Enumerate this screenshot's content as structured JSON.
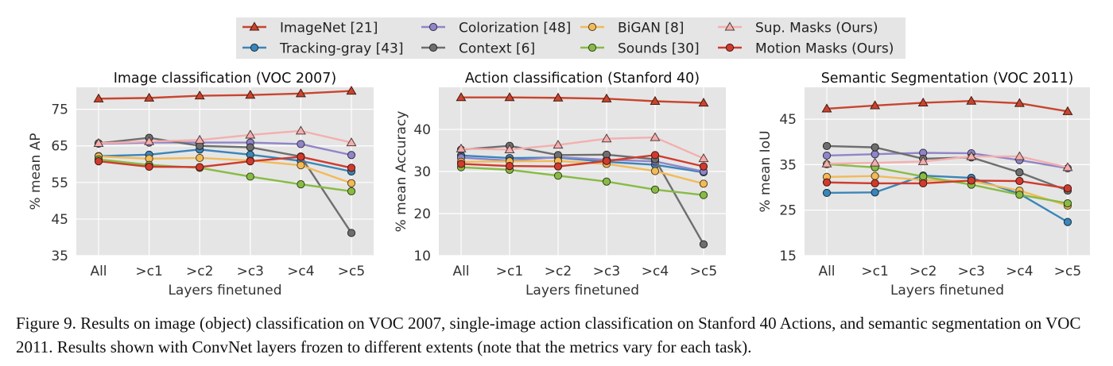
{
  "legend": {
    "placement": "top-center",
    "entries": [
      {
        "name": "ImageNet [21]",
        "color": "#C8452E",
        "marker": "triangle"
      },
      {
        "name": "Tracking-gray [43]",
        "color": "#3A85B9",
        "marker": "circle"
      },
      {
        "name": "Colorization [48]",
        "color": "#8F85C8",
        "marker": "circle"
      },
      {
        "name": "Context [6]",
        "color": "#6E6E6E",
        "marker": "circle"
      },
      {
        "name": "BiGAN [8]",
        "color": "#F2BA58",
        "marker": "circle"
      },
      {
        "name": "Sounds [30]",
        "color": "#88BB45",
        "marker": "circle"
      },
      {
        "name": "Sup. Masks (Ours)",
        "color": "#F4AFAF",
        "marker": "triangle"
      },
      {
        "name": "Motion Masks (Ours)",
        "color": "#CF3B2E",
        "marker": "circle"
      }
    ]
  },
  "chart_data": [
    {
      "type": "line",
      "title": "Image classification (VOC 2007)",
      "xlabel": "Layers finetuned",
      "ylabel": "% mean AP",
      "categories": [
        "All",
        ">c1",
        ">c2",
        ">c3",
        ">c4",
        ">c5"
      ],
      "ylim": [
        35,
        81
      ],
      "yticks": [
        35,
        45,
        55,
        65,
        75
      ],
      "grid": true,
      "series": [
        {
          "name": "ImageNet [21]",
          "values": [
            77.9,
            78.1,
            78.7,
            78.9,
            79.3,
            80.0
          ]
        },
        {
          "name": "Tracking-gray [43]",
          "values": [
            62.2,
            62.6,
            64.0,
            62.6,
            60.9,
            58.0
          ]
        },
        {
          "name": "Colorization [48]",
          "values": [
            65.6,
            65.9,
            65.9,
            65.9,
            65.5,
            62.5
          ]
        },
        {
          "name": "Context [6]",
          "values": [
            65.7,
            67.2,
            65.0,
            64.6,
            62.1,
            41.2
          ]
        },
        {
          "name": "BiGAN [8]",
          "values": [
            62.1,
            61.5,
            61.7,
            61.0,
            59.7,
            54.8
          ]
        },
        {
          "name": "Sounds [30]",
          "values": [
            61.3,
            59.8,
            59.0,
            56.6,
            54.5,
            52.6
          ]
        },
        {
          "name": "Sup. Masks (Ours)",
          "values": [
            65.7,
            66.2,
            66.6,
            68.0,
            69.1,
            65.9
          ]
        },
        {
          "name": "Motion Masks (Ours)",
          "values": [
            60.8,
            59.3,
            59.2,
            60.8,
            62.0,
            59.0
          ]
        }
      ]
    },
    {
      "type": "line",
      "title": "Action classification (Stanford 40)",
      "xlabel": "Layers finetuned",
      "ylabel": "% mean Accuracy",
      "categories": [
        "All",
        ">c1",
        ">c2",
        ">c3",
        ">c4",
        ">c5"
      ],
      "ylim": [
        10,
        50
      ],
      "yticks": [
        10,
        20,
        30,
        40
      ],
      "grid": true,
      "series": [
        {
          "name": "ImageNet [21]",
          "values": [
            47.6,
            47.6,
            47.5,
            47.3,
            46.7,
            46.3
          ]
        },
        {
          "name": "Tracking-gray [43]",
          "values": [
            33.8,
            33.2,
            33.3,
            32.3,
            31.6,
            29.8
          ]
        },
        {
          "name": "Colorization [48]",
          "values": [
            33.3,
            32.6,
            33.4,
            32.8,
            32.4,
            30.0
          ]
        },
        {
          "name": "Context [6]",
          "values": [
            35.2,
            36.1,
            33.9,
            34.0,
            32.9,
            12.7
          ]
        },
        {
          "name": "BiGAN [8]",
          "values": [
            32.3,
            32.4,
            32.5,
            31.8,
            30.1,
            27.1
          ]
        },
        {
          "name": "Sounds [30]",
          "values": [
            31.0,
            30.4,
            29.0,
            27.6,
            25.7,
            24.4
          ]
        },
        {
          "name": "Sup. Masks (Ours)",
          "values": [
            35.4,
            35.2,
            36.3,
            37.8,
            38.1,
            33.1
          ]
        },
        {
          "name": "Motion Masks (Ours)",
          "values": [
            31.8,
            31.3,
            31.2,
            32.5,
            33.9,
            31.2
          ]
        }
      ]
    },
    {
      "type": "line",
      "title": "Semantic Segmentation (VOC 2011)",
      "xlabel": "Layers finetuned",
      "ylabel": "% mean IoU",
      "categories": [
        "All",
        ">c1",
        ">c2",
        ">c3",
        ">c4",
        ">c5"
      ],
      "ylim": [
        15,
        52
      ],
      "yticks": [
        15,
        25,
        35,
        45
      ],
      "grid": true,
      "series": [
        {
          "name": "ImageNet [21]",
          "values": [
            47.3,
            48.0,
            48.6,
            49.0,
            48.5,
            46.7
          ]
        },
        {
          "name": "Tracking-gray [43]",
          "values": [
            28.8,
            28.9,
            32.6,
            32.1,
            28.6,
            22.4
          ]
        },
        {
          "name": "Colorization [48]",
          "values": [
            37.0,
            37.3,
            37.6,
            37.5,
            36.0,
            34.2
          ]
        },
        {
          "name": "Context [6]",
          "values": [
            39.1,
            38.8,
            36.3,
            36.6,
            33.3,
            29.3
          ]
        },
        {
          "name": "BiGAN [8]",
          "values": [
            32.3,
            32.5,
            31.6,
            31.4,
            29.3,
            26.0
          ]
        },
        {
          "name": "Sounds [30]",
          "values": [
            35.1,
            34.4,
            32.4,
            30.6,
            28.4,
            26.5
          ]
        },
        {
          "name": "Sup. Masks (Ours)",
          "values": [
            35.2,
            35.4,
            35.7,
            36.8,
            36.8,
            34.4
          ]
        },
        {
          "name": "Motion Masks (Ours)",
          "values": [
            31.1,
            30.9,
            30.9,
            31.5,
            31.4,
            29.8
          ]
        }
      ]
    }
  ],
  "caption": "Figure 9. Results on image (object) classification on VOC 2007, single-image action classification on Stanford 40 Actions, and semantic segmentation on VOC 2011. Results shown with ConvNet layers frozen to different extents (note that the metrics vary for each task)."
}
